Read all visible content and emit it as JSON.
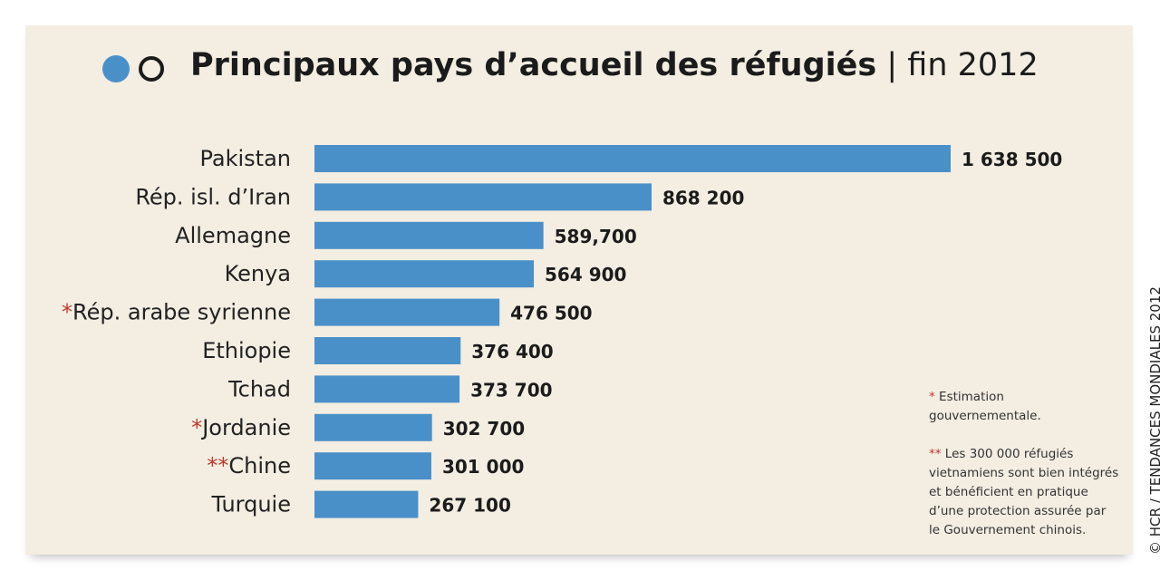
{
  "title_bold": "Principaux pays d’accueil des réfugiés",
  "title_separator": "|",
  "title_suffix": "fin 2012",
  "colors": {
    "bar": "#4a90c8",
    "accent_star": "#c0392b",
    "background": "#f3ede2"
  },
  "chart_data": {
    "type": "bar",
    "orientation": "horizontal",
    "title": "Principaux pays d’accueil des réfugiés | fin 2012",
    "categories": [
      "Pakistan",
      "Rép. isl. d’Iran",
      "Allemagne",
      "Kenya",
      "Rép. arabe syrienne",
      "Ethiopie",
      "Tchad",
      "Jordanie",
      "Chine",
      "Turquie"
    ],
    "category_marks": [
      "",
      "",
      "",
      "",
      "*",
      "",
      "",
      "*",
      "**",
      ""
    ],
    "values": [
      1638500,
      868200,
      589700,
      564900,
      476500,
      376400,
      373700,
      302700,
      301000,
      267100
    ],
    "value_labels": [
      "1 638 500",
      "868 200",
      "589,700",
      "564 900",
      "476 500",
      "376 400",
      "373 700",
      "302 700",
      "301 000",
      "267 100"
    ],
    "xlim": [
      0,
      1638500
    ],
    "grid": false
  },
  "notes": {
    "note1_mark": "*",
    "note1": "Estimation gouvernementale.",
    "note2_mark": "**",
    "note2": "Les 300 000 réfugiés vietnamiens sont bien intégrés et bénéficient en pratique d’une protection assurée par le Gouvernement chinois."
  },
  "credit": "© HCR / TENDANCES MONDIALES 2012"
}
